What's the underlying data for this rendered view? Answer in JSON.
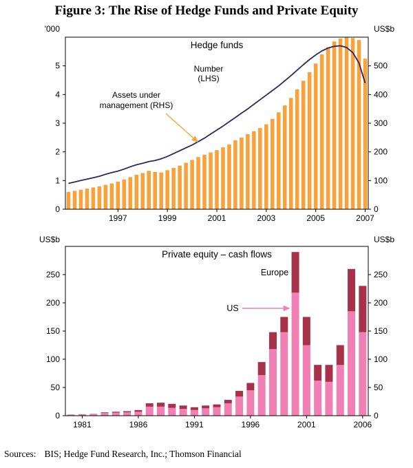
{
  "figure": {
    "title": "Figure 3: The Rise of Hedge Funds and Private Equity",
    "sources_label": "Sources:",
    "sources_text": "BIS; Hedge Fund Research, Inc.; Thomson Financial"
  },
  "colors": {
    "bar_orange": "#F9A23B",
    "line_navy": "#232B60",
    "us_pink": "#F07FB3",
    "europe_red": "#A63148",
    "axis_black": "#000000"
  },
  "chart_data": [
    {
      "id": "hedge-funds",
      "type": "bar+line",
      "title": "Hedge funds",
      "frequency": "quarterly",
      "x_start_year": 1995,
      "x_tick_years": [
        1997,
        1999,
        2001,
        2003,
        2005,
        2007
      ],
      "left_axis": {
        "unit": "'000",
        "label_for": "Number (LHS)",
        "min": 0,
        "max": 6,
        "ticks": [
          0,
          1,
          2,
          3,
          4,
          5
        ]
      },
      "right_axis": {
        "unit": "US$b",
        "label_for": "Assets under management (RHS)",
        "min": 0,
        "max": 600,
        "ticks": [
          0,
          100,
          200,
          300,
          400,
          500
        ]
      },
      "series": [
        {
          "name": "Number (LHS)",
          "type": "line",
          "axis": "left",
          "color_key": "line_navy",
          "values": [
            0.9,
            0.95,
            1.0,
            1.05,
            1.1,
            1.15,
            1.22,
            1.28,
            1.33,
            1.4,
            1.48,
            1.55,
            1.6,
            1.66,
            1.7,
            1.76,
            1.84,
            1.94,
            2.04,
            2.14,
            2.24,
            2.36,
            2.48,
            2.62,
            2.76,
            2.9,
            3.05,
            3.2,
            3.35,
            3.5,
            3.66,
            3.82,
            3.98,
            4.14,
            4.3,
            4.48,
            4.66,
            4.85,
            5.04,
            5.22,
            5.38,
            5.52,
            5.62,
            5.68,
            5.7,
            5.64,
            5.46,
            5.1,
            4.4
          ]
        },
        {
          "name": "Assets under management (RHS)",
          "type": "bar",
          "axis": "right",
          "color_key": "bar_orange",
          "values": [
            60,
            64,
            68,
            72,
            76,
            80,
            85,
            90,
            96,
            104,
            112,
            120,
            126,
            134,
            130,
            128,
            136,
            144,
            152,
            162,
            172,
            182,
            190,
            198,
            206,
            216,
            226,
            240,
            250,
            262,
            272,
            283,
            296,
            315,
            338,
            362,
            388,
            418,
            448,
            478,
            508,
            540,
            565,
            585,
            595,
            600,
            597,
            590,
            525
          ]
        }
      ],
      "annotations": [
        {
          "text": "Hedge funds",
          "color_key": "axis_black"
        },
        {
          "text": "Number",
          "color_key": "line_navy"
        },
        {
          "text": "(LHS)",
          "color_key": "line_navy"
        },
        {
          "text": "Assets under",
          "color_key": "bar_orange"
        },
        {
          "text": "management (RHS)",
          "color_key": "bar_orange"
        }
      ]
    },
    {
      "id": "private-equity",
      "type": "stacked-bar",
      "title": "Private equity – cash flows",
      "categories": [
        1980,
        1981,
        1982,
        1983,
        1984,
        1985,
        1986,
        1987,
        1988,
        1989,
        1990,
        1991,
        1992,
        1993,
        1994,
        1995,
        1996,
        1997,
        1998,
        1999,
        2000,
        2001,
        2002,
        2003,
        2004,
        2005,
        2006
      ],
      "x_tick_years": [
        1981,
        1986,
        1991,
        1996,
        2001,
        2006
      ],
      "left_axis": {
        "unit": "US$b",
        "min": 0,
        "max": 300,
        "ticks": [
          0,
          50,
          100,
          150,
          200,
          250
        ]
      },
      "right_axis": {
        "unit": "US$b",
        "min": 0,
        "max": 300,
        "ticks": [
          0,
          50,
          100,
          150,
          200,
          250
        ]
      },
      "series": [
        {
          "name": "US",
          "color_key": "us_pink",
          "values": [
            1.5,
            2,
            2.5,
            5,
            5.5,
            6,
            7,
            16,
            16,
            14,
            12,
            10,
            13,
            15,
            22,
            34,
            45,
            72,
            118,
            148,
            218,
            125,
            62,
            60,
            90,
            185,
            148
          ]
        },
        {
          "name": "Europe",
          "color_key": "europe_red",
          "values": [
            0.5,
            0.5,
            0.5,
            1,
            1.5,
            2,
            3,
            6,
            7,
            7,
            6,
            5,
            5,
            5,
            6,
            10,
            13,
            23,
            30,
            27,
            72,
            50,
            28,
            30,
            35,
            75,
            82
          ]
        }
      ],
      "annotations": [
        {
          "text": "Private equity – cash flows",
          "color_key": "axis_black"
        },
        {
          "text": "Europe",
          "color_key": "europe_red"
        },
        {
          "text": "US",
          "color_key": "us_pink"
        }
      ]
    }
  ]
}
